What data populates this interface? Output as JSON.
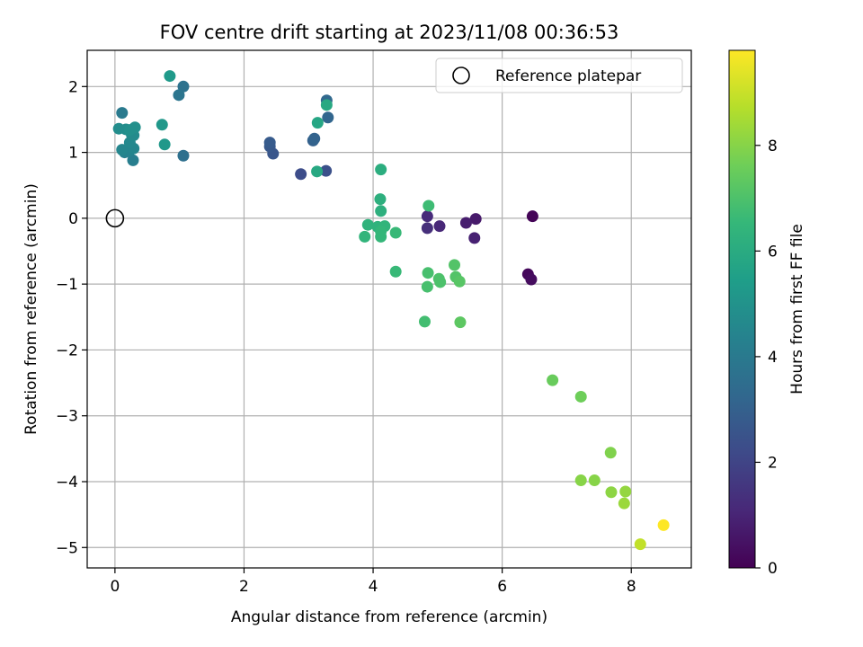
{
  "chart_data": {
    "type": "scatter",
    "title": "FOV centre drift starting at 2023/11/08 00:36:53",
    "xlabel": "Angular distance from reference (arcmin)",
    "ylabel": "Rotation from reference (arcmin)",
    "xlim": [
      -0.43,
      8.93
    ],
    "ylim": [
      -5.31,
      2.55
    ],
    "xticks": [
      0,
      2,
      4,
      6,
      8
    ],
    "yticks": [
      -5,
      -4,
      -3,
      -2,
      -1,
      0,
      1,
      2
    ],
    "grid": true,
    "legend": {
      "placement": "top-right",
      "entries": [
        "Reference platepar"
      ]
    },
    "reference_point": {
      "x": 0,
      "y": 0
    },
    "colorbar": {
      "label": "Hours from first FF file",
      "colormap": "viridis",
      "range": [
        0,
        9.8
      ],
      "ticks": [
        0,
        2,
        4,
        6,
        8
      ]
    },
    "points": [
      {
        "x": 6.47,
        "y": 0.03,
        "h": 0.1
      },
      {
        "x": 6.4,
        "y": -0.85,
        "h": 0.2
      },
      {
        "x": 6.45,
        "y": -0.93,
        "h": 0.3
      },
      {
        "x": 5.59,
        "y": -0.01,
        "h": 0.7
      },
      {
        "x": 5.44,
        "y": -0.07,
        "h": 0.8
      },
      {
        "x": 5.57,
        "y": -0.3,
        "h": 0.9
      },
      {
        "x": 5.03,
        "y": -0.12,
        "h": 1.1
      },
      {
        "x": 4.84,
        "y": 0.03,
        "h": 1.2
      },
      {
        "x": 4.84,
        "y": -0.15,
        "h": 1.3
      },
      {
        "x": 2.88,
        "y": 0.67,
        "h": 2.3
      },
      {
        "x": 3.27,
        "y": 0.72,
        "h": 2.4
      },
      {
        "x": 2.45,
        "y": 0.98,
        "h": 2.6
      },
      {
        "x": 2.4,
        "y": 1.09,
        "h": 2.7
      },
      {
        "x": 2.4,
        "y": 1.15,
        "h": 2.8
      },
      {
        "x": 3.07,
        "y": 1.18,
        "h": 3.0
      },
      {
        "x": 3.09,
        "y": 1.21,
        "h": 3.1
      },
      {
        "x": 3.3,
        "y": 1.53,
        "h": 3.2
      },
      {
        "x": 3.28,
        "y": 1.79,
        "h": 3.3
      },
      {
        "x": 1.06,
        "y": 0.95,
        "h": 3.6
      },
      {
        "x": 1.06,
        "y": 2.0,
        "h": 3.7
      },
      {
        "x": 0.99,
        "y": 1.87,
        "h": 3.8
      },
      {
        "x": 0.11,
        "y": 1.6,
        "h": 4.0
      },
      {
        "x": 0.28,
        "y": 0.88,
        "h": 4.2
      },
      {
        "x": 0.15,
        "y": 1.0,
        "h": 4.3
      },
      {
        "x": 0.22,
        "y": 1.02,
        "h": 4.4
      },
      {
        "x": 0.11,
        "y": 1.04,
        "h": 4.5
      },
      {
        "x": 0.29,
        "y": 1.06,
        "h": 4.5
      },
      {
        "x": 0.23,
        "y": 1.15,
        "h": 4.6
      },
      {
        "x": 0.29,
        "y": 1.26,
        "h": 4.7
      },
      {
        "x": 0.26,
        "y": 1.27,
        "h": 4.7
      },
      {
        "x": 0.06,
        "y": 1.36,
        "h": 4.8
      },
      {
        "x": 0.17,
        "y": 1.35,
        "h": 4.8
      },
      {
        "x": 0.23,
        "y": 1.34,
        "h": 4.9
      },
      {
        "x": 0.31,
        "y": 1.38,
        "h": 4.9
      },
      {
        "x": 0.77,
        "y": 1.12,
        "h": 5.2
      },
      {
        "x": 0.73,
        "y": 1.42,
        "h": 5.2
      },
      {
        "x": 0.85,
        "y": 2.16,
        "h": 5.3
      },
      {
        "x": 3.14,
        "y": 1.45,
        "h": 5.8
      },
      {
        "x": 3.28,
        "y": 1.72,
        "h": 5.9
      },
      {
        "x": 3.13,
        "y": 0.71,
        "h": 5.9
      },
      {
        "x": 4.12,
        "y": 0.74,
        "h": 6.1
      },
      {
        "x": 4.11,
        "y": 0.29,
        "h": 6.2
      },
      {
        "x": 4.12,
        "y": 0.11,
        "h": 6.2
      },
      {
        "x": 3.92,
        "y": -0.1,
        "h": 6.3
      },
      {
        "x": 4.07,
        "y": -0.13,
        "h": 6.3
      },
      {
        "x": 4.18,
        "y": -0.12,
        "h": 6.4
      },
      {
        "x": 3.87,
        "y": -0.28,
        "h": 6.4
      },
      {
        "x": 4.12,
        "y": -0.28,
        "h": 6.5
      },
      {
        "x": 4.12,
        "y": -0.2,
        "h": 6.5
      },
      {
        "x": 4.35,
        "y": -0.22,
        "h": 6.6
      },
      {
        "x": 4.35,
        "y": -0.81,
        "h": 6.6
      },
      {
        "x": 4.86,
        "y": 0.19,
        "h": 6.7
      },
      {
        "x": 4.8,
        "y": -1.57,
        "h": 6.8
      },
      {
        "x": 4.85,
        "y": -0.83,
        "h": 6.9
      },
      {
        "x": 4.84,
        "y": -1.04,
        "h": 6.9
      },
      {
        "x": 5.02,
        "y": -0.92,
        "h": 7.0
      },
      {
        "x": 5.04,
        "y": -0.97,
        "h": 7.0
      },
      {
        "x": 5.26,
        "y": -0.71,
        "h": 7.1
      },
      {
        "x": 5.28,
        "y": -0.89,
        "h": 7.1
      },
      {
        "x": 5.34,
        "y": -0.96,
        "h": 7.2
      },
      {
        "x": 5.35,
        "y": -1.58,
        "h": 7.3
      },
      {
        "x": 6.78,
        "y": -2.46,
        "h": 7.5
      },
      {
        "x": 7.22,
        "y": -2.71,
        "h": 7.6
      },
      {
        "x": 7.68,
        "y": -3.56,
        "h": 7.9
      },
      {
        "x": 7.22,
        "y": -3.98,
        "h": 8.0
      },
      {
        "x": 7.43,
        "y": -3.98,
        "h": 8.0
      },
      {
        "x": 7.69,
        "y": -4.16,
        "h": 8.1
      },
      {
        "x": 7.91,
        "y": -4.15,
        "h": 8.2
      },
      {
        "x": 7.89,
        "y": -4.33,
        "h": 8.3
      },
      {
        "x": 8.14,
        "y": -4.95,
        "h": 8.9
      },
      {
        "x": 8.5,
        "y": -4.66,
        "h": 9.8
      }
    ]
  }
}
